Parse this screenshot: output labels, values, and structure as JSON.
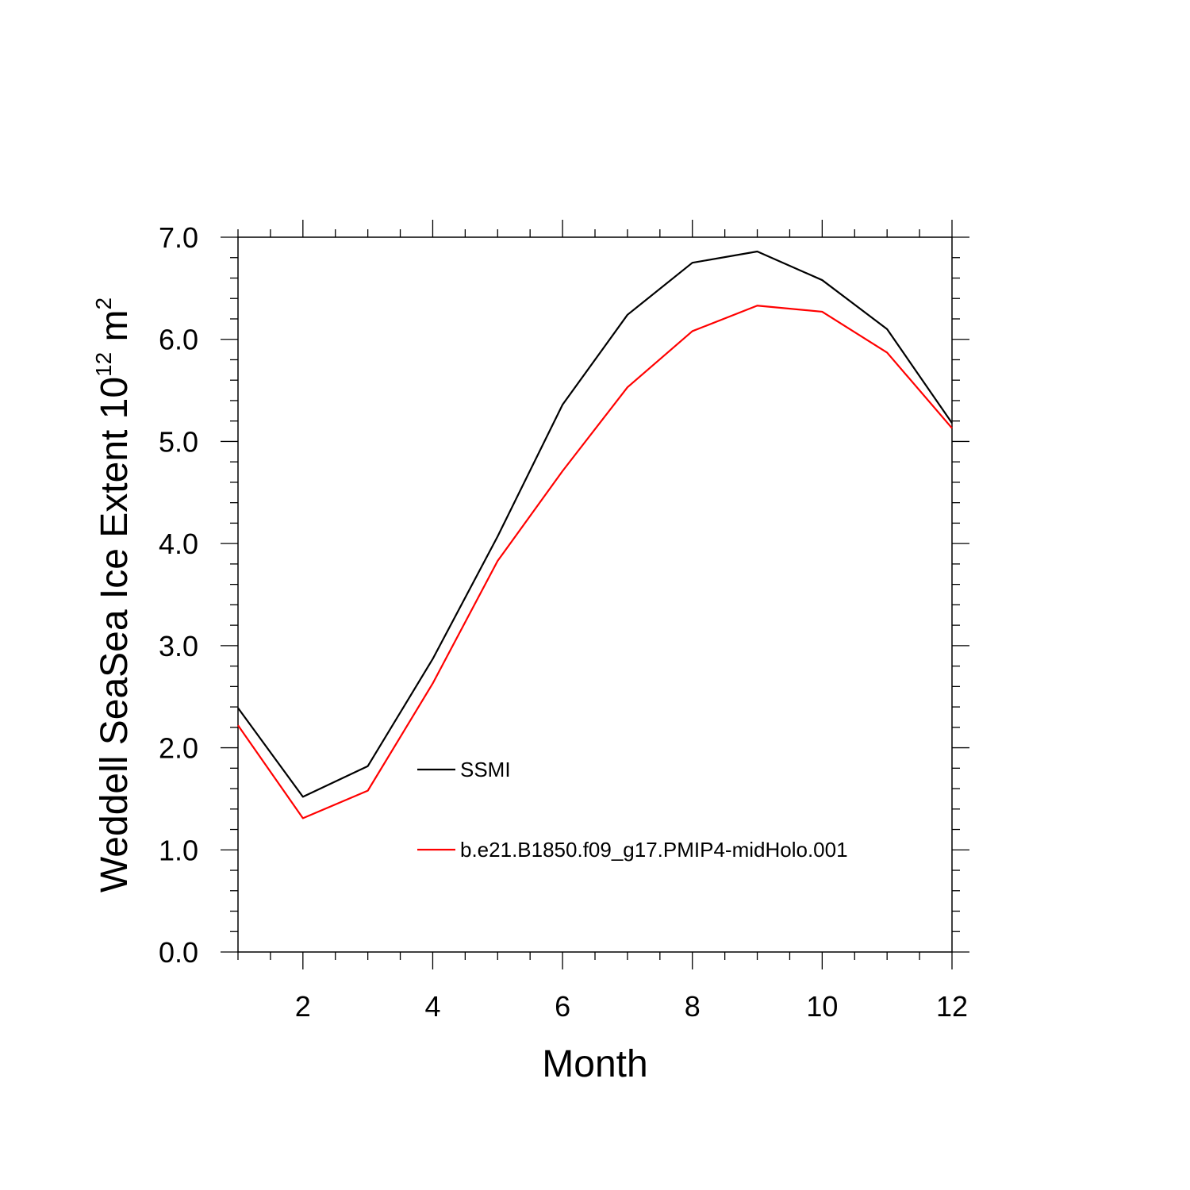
{
  "chart_data": {
    "type": "line",
    "title": "",
    "xlabel": "Month",
    "ylabel_main": "Weddell SeaSea Ice Extent 10",
    "ylabel_exp": "12",
    "ylabel_unit": " m",
    "ylabel_unit_exp": "2",
    "xlim": [
      1,
      12
    ],
    "ylim": [
      0,
      7
    ],
    "xticks": [
      2,
      4,
      6,
      8,
      10,
      12
    ],
    "xtick_labels": [
      "2",
      "4",
      "6",
      "8",
      "10",
      "12"
    ],
    "yticks": [
      0,
      1,
      2,
      3,
      4,
      5,
      6,
      7
    ],
    "ytick_labels": [
      "0.0",
      "1.0",
      "2.0",
      "3.0",
      "4.0",
      "5.0",
      "6.0",
      "7.0"
    ],
    "x": [
      1,
      2,
      3,
      4,
      5,
      6,
      7,
      8,
      9,
      10,
      11,
      12
    ],
    "grid": false,
    "legend_position": "center",
    "series": [
      {
        "name": "SSMI",
        "color": "#000000",
        "values": [
          2.39,
          1.52,
          1.82,
          2.87,
          4.07,
          5.36,
          6.24,
          6.75,
          6.86,
          6.58,
          6.1,
          5.18
        ]
      },
      {
        "name": "b.e21.B1850.f09_g17.PMIP4-midHolo.001",
        "color": "#ff0000",
        "values": [
          2.22,
          1.31,
          1.58,
          2.63,
          3.83,
          4.71,
          5.53,
          6.08,
          6.33,
          6.27,
          5.87,
          5.13
        ]
      }
    ]
  }
}
